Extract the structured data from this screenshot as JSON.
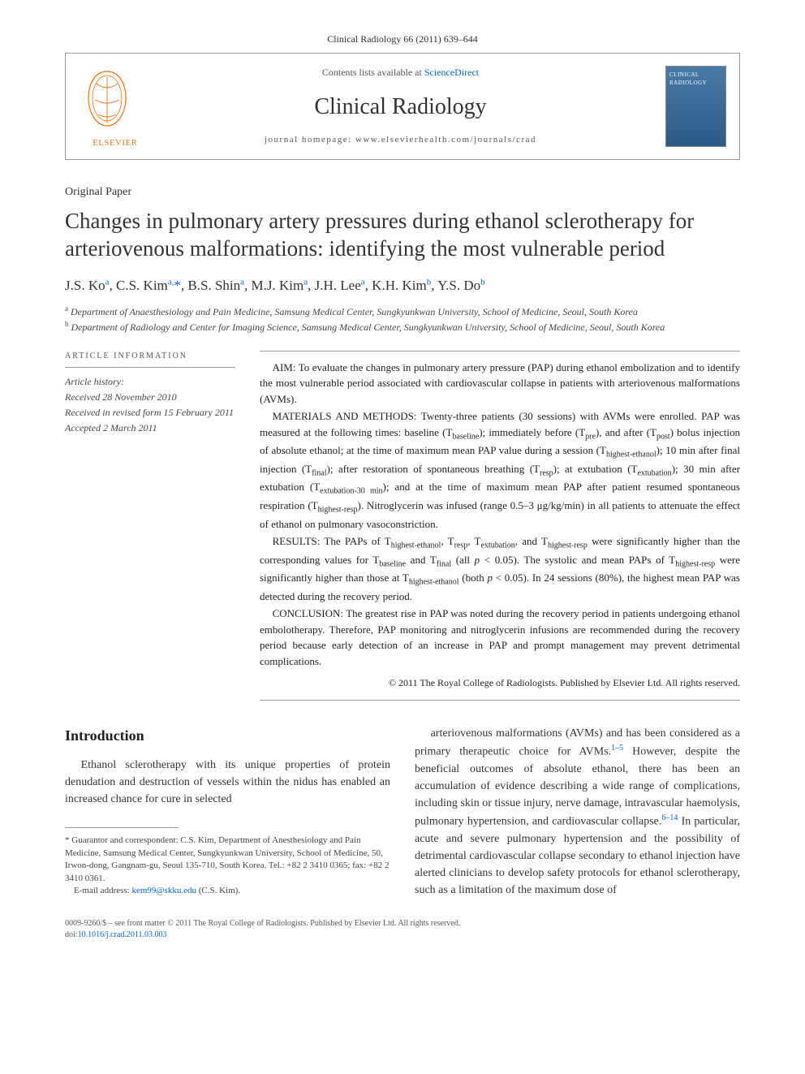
{
  "journal_header": "Clinical Radiology 66 (2011) 639–644",
  "masthead": {
    "contents_prefix": "Contents lists available at ",
    "contents_link": "ScienceDirect",
    "journal_title": "Clinical Radiology",
    "homepage_prefix": "journal homepage: ",
    "homepage_url": "www.elsevierhealth.com/journals/crad",
    "publisher_name": "ELSEVIER",
    "cover_label": "CLINICAL RADIOLOGY"
  },
  "paper_type": "Original Paper",
  "title": "Changes in pulmonary artery pressures during ethanol sclerotherapy for arteriovenous malformations: identifying the most vulnerable period",
  "authors_html": "J.S. Ko<sup>a</sup>, C.S. Kim<sup>a,</sup><span class='corr'>*</span>, B.S. Shin<sup>a</sup>, M.J. Kim<sup>a</sup>, J.H. Lee<sup>a</sup>, K.H. Kim<sup>b</sup>, Y.S. Do<sup>b</sup>",
  "affiliations": {
    "a": "Department of Anaesthesiology and Pain Medicine, Samsung Medical Center, Sungkyunkwan University, School of Medicine, Seoul, South Korea",
    "b": "Department of Radiology and Center for Imaging Science, Samsung Medical Center, Sungkyunkwan University, School of Medicine, Seoul, South Korea"
  },
  "article_info": {
    "header": "ARTICLE INFORMATION",
    "history_label": "Article history:",
    "received": "Received 28 November 2010",
    "revised": "Received in revised form 15 February 2011",
    "accepted": "Accepted 2 March 2011"
  },
  "abstract": {
    "aim": "AIM: To evaluate the changes in pulmonary artery pressure (PAP) during ethanol embolization and to identify the most vulnerable period associated with cardiovascular collapse in patients with arteriovenous malformations (AVMs).",
    "methods": "MATERIALS AND METHODS: Twenty-three patients (30 sessions) with AVMs were enrolled. PAP was measured at the following times: baseline (Tbaseline); immediately before (Tpre), and after (Tpost) bolus injection of absolute ethanol; at the time of maximum mean PAP value during a session (Thighest-ethanol); 10 min after final injection (Tfinal); after restoration of spontaneous breathing (Tresp); at extubation (Textubation); 30 min after extubation (Textubation-30 min); and at the time of maximum mean PAP after patient resumed spontaneous respiration (Thighest-resp). Nitroglycerin was infused (range 0.5–3 μg/kg/min) in all patients to attenuate the effect of ethanol on pulmonary vasoconstriction.",
    "results": "RESULTS: The PAPs of Thighest-ethanol, Tresp, Textubation, and Thighest-resp were significantly higher than the corresponding values for Tbaseline and Tfinal (all p < 0.05). The systolic and mean PAPs of Thighest-resp were significantly higher than those at Thighest-ethanol (both p < 0.05). In 24 sessions (80%), the highest mean PAP was detected during the recovery period.",
    "conclusion": "CONCLUSION: The greatest rise in PAP was noted during the recovery period in patients undergoing ethanol embolotherapy. Therefore, PAP monitoring and nitroglycerin infusions are recommended during the recovery period because early detection of an increase in PAP and prompt management may prevent detrimental complications.",
    "copyright": "© 2011 The Royal College of Radiologists. Published by Elsevier Ltd. All rights reserved."
  },
  "body": {
    "intro_head": "Introduction",
    "col1_p1": "Ethanol sclerotherapy with its unique properties of protein denudation and destruction of vessels within the nidus has enabled an increased chance for cure in selected",
    "col2_p1_part1": "arteriovenous malformations (AVMs) and has been considered as a primary therapeutic choice for AVMs.",
    "col2_sup1": "1–5",
    "col2_p1_part2": " However, despite the beneficial outcomes of absolute ethanol, there has been an accumulation of evidence describing a wide range of complications, including skin or tissue injury, nerve damage, intravascular haemolysis, pulmonary hypertension, and cardiovascular collapse.",
    "col2_sup2": "6–14",
    "col2_p1_part3": " In particular, acute and severe pulmonary hypertension and the possibility of detrimental cardiovascular collapse secondary to ethanol injection have alerted clinicians to develop safety protocols for ethanol sclerotherapy, such as a limitation of the maximum dose of"
  },
  "footnote": {
    "guarantor": "* Guarantor and correspondent: C.S. Kim, Department of Anesthesiology and Pain Medicine, Samsung Medical Center, Sungkyunkwan University, School of Medicine, 50, Irwon-dong, Gangnam-gu, Seoul 135-710, South Korea. Tel.: +82 2 3410 0365; fax: +82 2 3410 0361.",
    "email_label": "E-mail address: ",
    "email": "kem99@skku.edu",
    "email_suffix": " (C.S. Kim)."
  },
  "bottom": {
    "line1": "0009-9260/$ – see front matter © 2011 The Royal College of Radiologists. Published by Elsevier Ltd. All rights reserved.",
    "doi_label": "doi:",
    "doi": "10.1016/j.crad.2011.03.003"
  }
}
